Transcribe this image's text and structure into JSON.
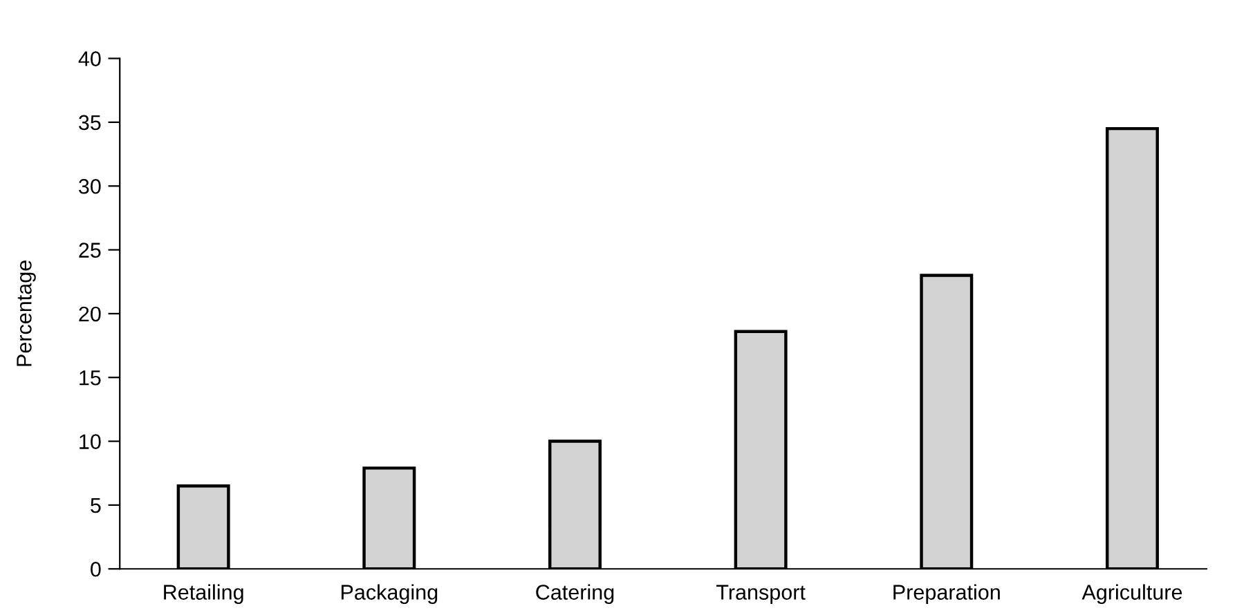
{
  "chart_data": {
    "type": "bar",
    "ylabel": "Percentage",
    "categories": [
      "Retailing",
      "Packaging",
      "Catering",
      "Transport",
      "Preparation",
      "Agriculture"
    ],
    "values": [
      6.5,
      7.9,
      10.0,
      18.6,
      23.0,
      34.5
    ],
    "color": "#d3d3d3",
    "ylim": [
      0,
      40
    ],
    "yticks": [
      0,
      5,
      10,
      15,
      20,
      25,
      30,
      35,
      40
    ],
    "grid": false
  }
}
